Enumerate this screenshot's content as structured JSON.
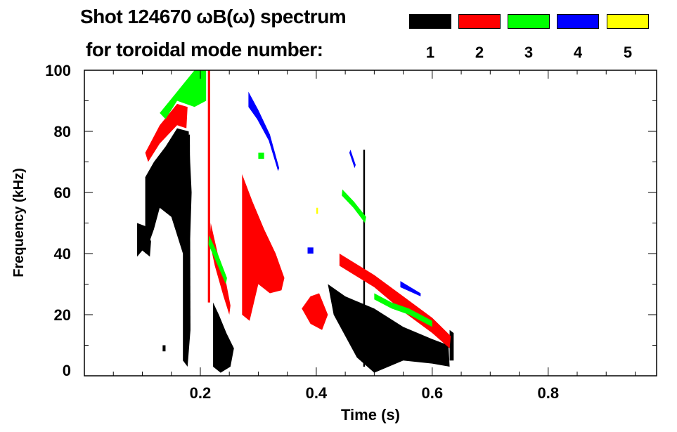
{
  "title_line1": "Shot 124670 ωB(ω) spectrum",
  "title_line2": "for toroidal mode number:",
  "chart_data": {
    "type": "heatmap",
    "title": "Shot 124670 ωB(ω) spectrum for toroidal mode number",
    "xlabel": "Time (s)",
    "ylabel": "Frequency (kHz)",
    "xlim": [
      0,
      0.987
    ],
    "ylim": [
      0,
      100
    ],
    "xticks": [
      0.2,
      0.4,
      0.6,
      0.8
    ],
    "xtick_labels": [
      "0.2",
      "0.4",
      "0.6",
      "0.8"
    ],
    "yticks": [
      0,
      20,
      40,
      60,
      80,
      100
    ],
    "ytick_labels": [
      "0",
      "20",
      "40",
      "60",
      "80",
      "100"
    ],
    "legend": [
      {
        "mode": "1",
        "color": "#000000"
      },
      {
        "mode": "2",
        "color": "#ff0000"
      },
      {
        "mode": "3",
        "color": "#00ff00"
      },
      {
        "mode": "4",
        "color": "#0000ff"
      },
      {
        "mode": "5",
        "color": "#ffff00"
      }
    ],
    "legend_placement": "top-right",
    "regions": [
      {
        "mode": 1,
        "polygon": [
          [
            0.091,
            39
          ],
          [
            0.091,
            50
          ],
          [
            0.105,
            49
          ],
          [
            0.115,
            44
          ],
          [
            0.113,
            39
          ],
          [
            0.1,
            41
          ]
        ]
      },
      {
        "mode": 1,
        "polygon": [
          [
            0.105,
            40
          ],
          [
            0.105,
            65
          ],
          [
            0.12,
            70
          ],
          [
            0.14,
            75
          ],
          [
            0.16,
            81
          ],
          [
            0.18,
            80
          ],
          [
            0.185,
            60
          ],
          [
            0.18,
            30
          ],
          [
            0.17,
            40
          ],
          [
            0.15,
            52
          ],
          [
            0.13,
            55
          ],
          [
            0.12,
            48
          ]
        ]
      },
      {
        "mode": 1,
        "polygon": [
          [
            0.17,
            5
          ],
          [
            0.17,
            78
          ],
          [
            0.182,
            79
          ],
          [
            0.183,
            15
          ],
          [
            0.178,
            3
          ]
        ]
      },
      {
        "mode": 1,
        "polygon": [
          [
            0.222,
            3
          ],
          [
            0.222,
            24
          ],
          [
            0.232,
            20
          ],
          [
            0.245,
            14
          ],
          [
            0.258,
            9
          ],
          [
            0.252,
            3
          ],
          [
            0.235,
            1
          ]
        ]
      },
      {
        "mode": 1,
        "polygon": [
          [
            0.42,
            30
          ],
          [
            0.45,
            26
          ],
          [
            0.5,
            22
          ],
          [
            0.55,
            16
          ],
          [
            0.6,
            12
          ],
          [
            0.628,
            10
          ],
          [
            0.63,
            3
          ],
          [
            0.6,
            4
          ],
          [
            0.55,
            5
          ],
          [
            0.5,
            1
          ],
          [
            0.47,
            6
          ],
          [
            0.43,
            20
          ]
        ]
      },
      {
        "mode": 1,
        "polygon": [
          [
            0.63,
            5
          ],
          [
            0.63,
            15
          ],
          [
            0.637,
            14
          ],
          [
            0.637,
            5
          ]
        ]
      },
      {
        "mode": 1,
        "polygon": [
          [
            0.481,
            3
          ],
          [
            0.481,
            74
          ],
          [
            0.484,
            74
          ],
          [
            0.484,
            3
          ]
        ]
      },
      {
        "mode": 1,
        "polygon": [
          [
            0.135,
            8
          ],
          [
            0.135,
            10
          ],
          [
            0.14,
            10
          ],
          [
            0.14,
            8
          ]
        ]
      },
      {
        "mode": 2,
        "polygon": [
          [
            0.105,
            73
          ],
          [
            0.13,
            82
          ],
          [
            0.16,
            89
          ],
          [
            0.178,
            88
          ],
          [
            0.176,
            81
          ],
          [
            0.16,
            82
          ],
          [
            0.13,
            76
          ],
          [
            0.11,
            70
          ]
        ]
      },
      {
        "mode": 2,
        "polygon": [
          [
            0.213,
            24
          ],
          [
            0.213,
            100
          ],
          [
            0.217,
            100
          ],
          [
            0.217,
            24
          ]
        ]
      },
      {
        "mode": 2,
        "polygon": [
          [
            0.218,
            50
          ],
          [
            0.23,
            40
          ],
          [
            0.245,
            30
          ],
          [
            0.252,
            23
          ],
          [
            0.25,
            20
          ],
          [
            0.24,
            26
          ],
          [
            0.225,
            36
          ],
          [
            0.216,
            44
          ]
        ]
      },
      {
        "mode": 2,
        "polygon": [
          [
            0.272,
            20
          ],
          [
            0.272,
            66
          ],
          [
            0.29,
            57
          ],
          [
            0.31,
            48
          ],
          [
            0.33,
            40
          ],
          [
            0.345,
            32
          ],
          [
            0.34,
            28
          ],
          [
            0.32,
            27
          ],
          [
            0.3,
            30
          ],
          [
            0.285,
            18
          ]
        ]
      },
      {
        "mode": 2,
        "polygon": [
          [
            0.375,
            22
          ],
          [
            0.39,
            26
          ],
          [
            0.405,
            27
          ],
          [
            0.42,
            20
          ],
          [
            0.41,
            15
          ],
          [
            0.39,
            17
          ]
        ]
      },
      {
        "mode": 2,
        "polygon": [
          [
            0.44,
            40
          ],
          [
            0.5,
            33
          ],
          [
            0.55,
            26
          ],
          [
            0.6,
            19
          ],
          [
            0.632,
            13
          ],
          [
            0.63,
            9
          ],
          [
            0.6,
            14
          ],
          [
            0.55,
            21
          ],
          [
            0.5,
            29
          ],
          [
            0.44,
            36
          ]
        ]
      },
      {
        "mode": 3,
        "polygon": [
          [
            0.13,
            86
          ],
          [
            0.16,
            93
          ],
          [
            0.19,
            100
          ],
          [
            0.21,
            100
          ],
          [
            0.21,
            90
          ],
          [
            0.19,
            88
          ],
          [
            0.16,
            90
          ],
          [
            0.14,
            84
          ]
        ]
      },
      {
        "mode": 3,
        "polygon": [
          [
            0.215,
            46
          ],
          [
            0.23,
            40
          ],
          [
            0.246,
            32
          ],
          [
            0.244,
            30
          ],
          [
            0.228,
            37
          ],
          [
            0.214,
            43
          ]
        ]
      },
      {
        "mode": 3,
        "polygon": [
          [
            0.445,
            61
          ],
          [
            0.465,
            57
          ],
          [
            0.486,
            52
          ],
          [
            0.484,
            50
          ],
          [
            0.464,
            55
          ],
          [
            0.444,
            59
          ]
        ]
      },
      {
        "mode": 3,
        "polygon": [
          [
            0.5,
            27
          ],
          [
            0.53,
            24
          ],
          [
            0.56,
            22
          ],
          [
            0.6,
            18
          ],
          [
            0.6,
            16
          ],
          [
            0.56,
            20
          ],
          [
            0.53,
            22
          ],
          [
            0.5,
            25
          ]
        ]
      },
      {
        "mode": 3,
        "polygon": [
          [
            0.3,
            71
          ],
          [
            0.3,
            73
          ],
          [
            0.31,
            73
          ],
          [
            0.31,
            71
          ]
        ]
      },
      {
        "mode": 4,
        "polygon": [
          [
            0.283,
            93
          ],
          [
            0.3,
            87
          ],
          [
            0.32,
            79
          ],
          [
            0.336,
            68
          ],
          [
            0.334,
            67
          ],
          [
            0.318,
            77
          ],
          [
            0.298,
            84
          ],
          [
            0.283,
            88
          ]
        ]
      },
      {
        "mode": 4,
        "polygon": [
          [
            0.385,
            40
          ],
          [
            0.385,
            42
          ],
          [
            0.395,
            42
          ],
          [
            0.395,
            40
          ]
        ]
      },
      {
        "mode": 4,
        "polygon": [
          [
            0.459,
            74
          ],
          [
            0.468,
            69
          ],
          [
            0.466,
            68
          ],
          [
            0.457,
            73
          ]
        ]
      },
      {
        "mode": 4,
        "polygon": [
          [
            0.545,
            31
          ],
          [
            0.58,
            27
          ],
          [
            0.58,
            26
          ],
          [
            0.545,
            29
          ]
        ]
      },
      {
        "mode": 5,
        "polygon": [
          [
            0.4,
            53
          ],
          [
            0.4,
            55
          ],
          [
            0.403,
            55
          ],
          [
            0.403,
            53
          ]
        ]
      }
    ]
  }
}
